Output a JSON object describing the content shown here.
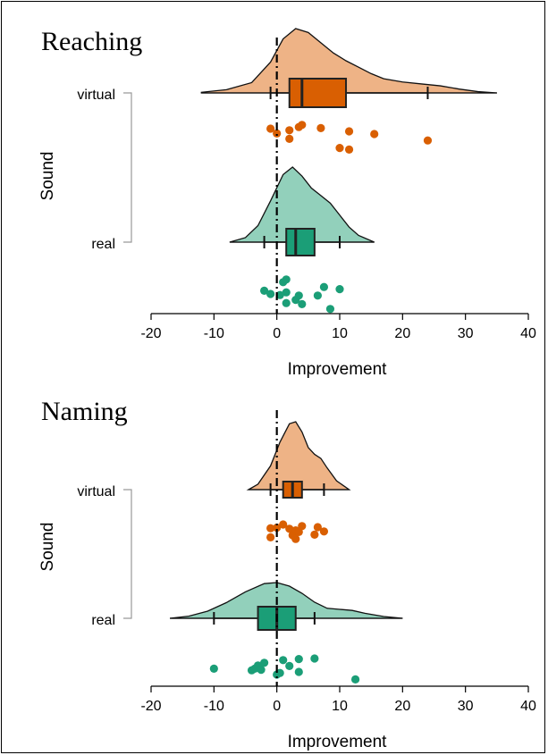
{
  "chart_data": [
    {
      "type": "raincloud",
      "title": "Reaching",
      "xlabel": "Improvement",
      "ylabel": "Sound",
      "xlim": [
        -20,
        40
      ],
      "xticks": [
        -20,
        -10,
        0,
        10,
        20,
        30,
        40
      ],
      "reference_line": 0,
      "groups": [
        {
          "name": "virtual",
          "color": "#D95F02",
          "fill": "#EEB386",
          "box": {
            "whisker_low": -1,
            "q1": 2,
            "median": 4,
            "q3": 11,
            "whisker_high": 24
          },
          "density_range": [
            -12,
            35
          ],
          "density": [
            [
              -12,
              0.01
            ],
            [
              -8,
              0.05
            ],
            [
              -4,
              0.16
            ],
            [
              -1,
              0.48
            ],
            [
              1,
              0.84
            ],
            [
              3,
              1.0
            ],
            [
              5,
              0.94
            ],
            [
              7,
              0.78
            ],
            [
              9,
              0.62
            ],
            [
              11,
              0.5
            ],
            [
              13,
              0.4
            ],
            [
              15,
              0.3
            ],
            [
              17,
              0.22
            ],
            [
              20,
              0.17
            ],
            [
              23,
              0.14
            ],
            [
              26,
              0.11
            ],
            [
              29,
              0.06
            ],
            [
              32,
              0.02
            ],
            [
              35,
              0.0
            ]
          ],
          "points": [
            [
              -1,
              1.0
            ],
            [
              0,
              0.1
            ],
            [
              2,
              0.7
            ],
            [
              2,
              -0.9
            ],
            [
              3.5,
              1.3
            ],
            [
              4,
              1.7
            ],
            [
              7,
              1.1
            ],
            [
              10,
              -2.6
            ],
            [
              11.5,
              0.5
            ],
            [
              11.5,
              -2.9
            ],
            [
              15.5,
              0.0
            ],
            [
              24,
              -1.2
            ]
          ]
        },
        {
          "name": "real",
          "color": "#1B9E77",
          "fill": "#92D0BB",
          "box": {
            "whisker_low": -2,
            "q1": 1.5,
            "median": 3,
            "q3": 6,
            "whisker_high": 10
          },
          "density_range": [
            -7.5,
            15.5
          ],
          "density": [
            [
              -7.5,
              0.0
            ],
            [
              -5,
              0.06
            ],
            [
              -3,
              0.22
            ],
            [
              -1,
              0.55
            ],
            [
              1,
              0.9
            ],
            [
              2.5,
              1.0
            ],
            [
              4,
              0.88
            ],
            [
              5.5,
              0.72
            ],
            [
              7,
              0.62
            ],
            [
              8.5,
              0.52
            ],
            [
              10,
              0.36
            ],
            [
              11.5,
              0.2
            ],
            [
              13,
              0.09
            ],
            [
              15.5,
              0.0
            ]
          ],
          "points": [
            [
              -2,
              -0.9
            ],
            [
              -1,
              -1.5
            ],
            [
              0.5,
              -1.7
            ],
            [
              1,
              0.7
            ],
            [
              1.5,
              -1.2
            ],
            [
              1.5,
              -3.2
            ],
            [
              1.5,
              1.2
            ],
            [
              3,
              -2.6
            ],
            [
              3.5,
              -1.8
            ],
            [
              4,
              -3.4
            ],
            [
              6.5,
              -1.8
            ],
            [
              7.5,
              -0.2
            ],
            [
              8.5,
              -4.3
            ],
            [
              10,
              -0.6
            ]
          ]
        }
      ]
    },
    {
      "type": "raincloud",
      "title": "Naming",
      "xlabel": "Improvement",
      "ylabel": "Sound",
      "xlim": [
        -20,
        40
      ],
      "xticks": [
        -20,
        -10,
        0,
        10,
        20,
        30,
        40
      ],
      "reference_line": 0,
      "groups": [
        {
          "name": "virtual",
          "color": "#D95F02",
          "fill": "#EEB386",
          "box": {
            "whisker_low": -1,
            "q1": 1,
            "median": 2.5,
            "q3": 4,
            "whisker_high": 7.5
          },
          "density_range": [
            -4.5,
            11.5
          ],
          "density": [
            [
              -4.5,
              0.0
            ],
            [
              -3,
              0.08
            ],
            [
              -1,
              0.35
            ],
            [
              0.5,
              0.7
            ],
            [
              2,
              0.97
            ],
            [
              3,
              1.0
            ],
            [
              4,
              0.85
            ],
            [
              5,
              0.62
            ],
            [
              6,
              0.52
            ],
            [
              7,
              0.46
            ],
            [
              8,
              0.32
            ],
            [
              9.5,
              0.13
            ],
            [
              11.5,
              0.0
            ]
          ],
          "points": [
            [
              -1,
              -1.9
            ],
            [
              -1,
              -0.2
            ],
            [
              0,
              -0.1
            ],
            [
              1,
              0.5
            ],
            [
              2,
              -0.3
            ],
            [
              2.5,
              -1.5
            ],
            [
              3,
              -2.2
            ],
            [
              3,
              -0.6
            ],
            [
              3.5,
              -0.9
            ],
            [
              4,
              0.2
            ],
            [
              6,
              -1.4
            ],
            [
              6.5,
              0.0
            ],
            [
              7.5,
              -0.8
            ]
          ]
        },
        {
          "name": "real",
          "color": "#1B9E77",
          "fill": "#92D0BB",
          "box": {
            "whisker_low": -10,
            "q1": -3,
            "median": 0,
            "q3": 3,
            "whisker_high": 6
          },
          "density_range": [
            -17,
            20
          ],
          "density": [
            [
              -17,
              0.0
            ],
            [
              -14,
              0.06
            ],
            [
              -11,
              0.2
            ],
            [
              -8,
              0.44
            ],
            [
              -5,
              0.74
            ],
            [
              -2,
              0.97
            ],
            [
              0,
              1.0
            ],
            [
              2,
              0.9
            ],
            [
              4,
              0.7
            ],
            [
              6,
              0.45
            ],
            [
              8,
              0.28
            ],
            [
              10,
              0.25
            ],
            [
              12,
              0.22
            ],
            [
              14,
              0.14
            ],
            [
              17,
              0.05
            ],
            [
              20,
              0.0
            ]
          ],
          "points": [
            [
              -10,
              -1.4
            ],
            [
              -4,
              -1.7
            ],
            [
              -3.5,
              -1.4
            ],
            [
              -3,
              -0.8
            ],
            [
              -2.5,
              -1.6
            ],
            [
              -2,
              -0.3
            ],
            [
              0,
              -2.5
            ],
            [
              0.5,
              -2.2
            ],
            [
              1,
              0.2
            ],
            [
              2,
              -0.9
            ],
            [
              3.5,
              -2.0
            ],
            [
              3.5,
              0.4
            ],
            [
              6,
              0.5
            ],
            [
              12.5,
              -3.4
            ]
          ]
        }
      ]
    }
  ]
}
